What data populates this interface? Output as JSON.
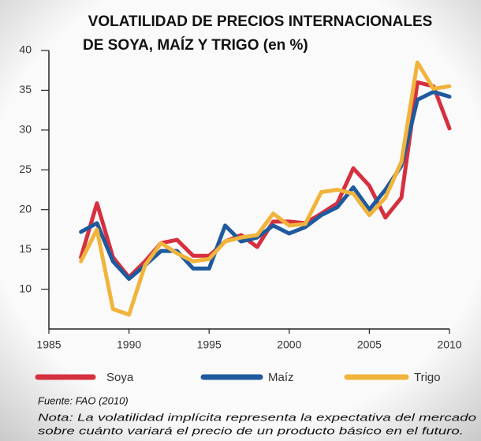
{
  "chart_data": {
    "type": "line",
    "title": [
      "VOLATILIDAD DE PRECIOS INTERNACIONALES",
      "DE SOYA, MAÍZ Y TRIGO (en %)"
    ],
    "x": [
      1987,
      1988,
      1989,
      1990,
      1991,
      1992,
      1993,
      1994,
      1995,
      1996,
      1997,
      1998,
      1999,
      2000,
      2001,
      2002,
      2003,
      2004,
      2005,
      2006,
      2007,
      2008,
      2009,
      2010
    ],
    "series": [
      {
        "name": "Soya",
        "color": "#d6303f",
        "values": [
          14,
          20.8,
          14,
          11.5,
          13.5,
          15.8,
          16.2,
          14.2,
          14.2,
          16,
          16.8,
          15.3,
          18.5,
          18.5,
          18.3,
          19.5,
          20.8,
          25.2,
          23,
          19,
          21.5,
          36,
          35.5,
          30.2
        ]
      },
      {
        "name": "Maíz",
        "color": "#1f5a9e",
        "values": [
          17.2,
          18.3,
          13.5,
          11.3,
          13,
          14.8,
          14.8,
          12.6,
          12.6,
          18,
          16,
          16.5,
          18,
          17,
          17.8,
          19.3,
          20.3,
          22.8,
          20,
          22.5,
          25.5,
          33.8,
          34.8,
          34.2
        ]
      },
      {
        "name": "Trigo",
        "color": "#f0b43c",
        "values": [
          13.5,
          17.5,
          7.5,
          6.8,
          13,
          15.8,
          14.5,
          13.5,
          13.8,
          16,
          16.5,
          16.8,
          19.5,
          18,
          18.2,
          22.2,
          22.5,
          22,
          19.3,
          21.5,
          26,
          38.5,
          35.2,
          35.5
        ]
      }
    ],
    "xlim": [
      1985,
      2010
    ],
    "xticks": [
      1985,
      1990,
      1995,
      2000,
      2005,
      2010
    ],
    "ylim": [
      5,
      40
    ],
    "yticks": [
      10,
      15,
      20,
      25,
      30,
      35,
      40
    ],
    "grid": false,
    "source": "Fuente: FAO (2010)",
    "note": [
      "Nota: La volatilidad implícita representa la expectativa del mercado",
      "sobre cuánto variará el precio de un producto básico en el futuro."
    ]
  }
}
